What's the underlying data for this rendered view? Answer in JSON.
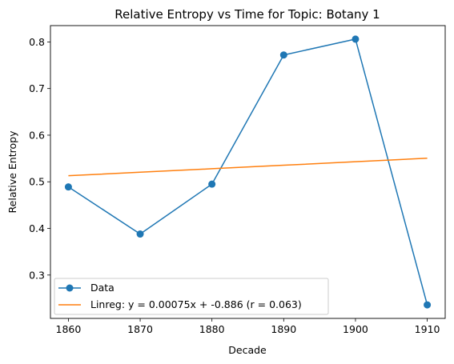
{
  "chart_data": {
    "type": "line",
    "title": "Relative Entropy vs Time for Topic: Botany 1",
    "xlabel": "Decade",
    "ylabel": "Relative Entropy",
    "x": [
      1860,
      1870,
      1880,
      1890,
      1900,
      1910
    ],
    "xticks": [
      "1860",
      "1870",
      "1880",
      "1890",
      "1900",
      "1910"
    ],
    "yticks": [
      "0.3",
      "0.4",
      "0.5",
      "0.6",
      "0.7",
      "0.8"
    ],
    "xlim": [
      1857.5,
      1912.5
    ],
    "ylim": [
      0.207,
      0.835
    ],
    "grid": false,
    "legend_location": "lower-left",
    "series": [
      {
        "name": "Data",
        "color": "#1f77b4",
        "marker": "circle",
        "values": [
          0.489,
          0.388,
          0.495,
          0.772,
          0.806,
          0.236
        ]
      },
      {
        "name": "Linreg: y = 0.00075x + -0.886 (r = 0.063)",
        "color": "#ff7f0e",
        "marker": "none",
        "values": [
          0.513,
          0.5205,
          0.528,
          0.5355,
          0.543,
          0.5505
        ]
      }
    ]
  }
}
